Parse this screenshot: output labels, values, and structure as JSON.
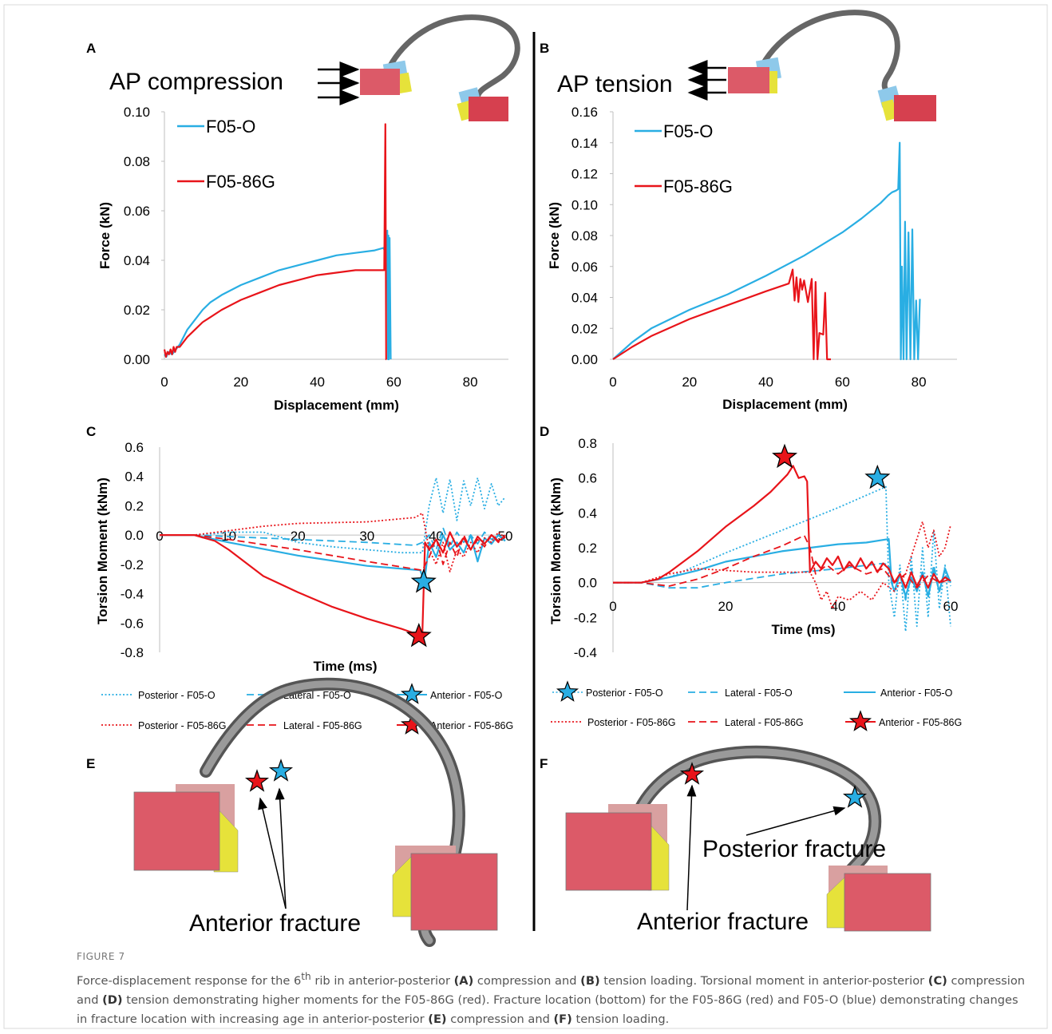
{
  "colors": {
    "blue": "#29aee3",
    "red": "#e8141a",
    "block": "#dc5a68",
    "block_back": "#d9a0a0",
    "yellow": "#e6e23a",
    "rib": "#7a7a7a"
  },
  "panels": {
    "a": "A",
    "b": "B",
    "c": "C",
    "d": "D",
    "e": "E",
    "f": "F"
  },
  "schematics": {
    "a_title": "AP compression",
    "b_title": "AP tension",
    "anterior": "Anterior fracture",
    "posterior": "Posterior fracture"
  },
  "chart_data": [
    {
      "panel": "A",
      "type": "line",
      "xlabel": "Displacement (mm)",
      "ylabel": "Force (kN)",
      "xlim": [
        0,
        90
      ],
      "ylim": [
        0,
        0.1
      ],
      "xticks": [
        "0",
        "20",
        "40",
        "60",
        "80"
      ],
      "yticks": [
        "0.00",
        "0.02",
        "0.04",
        "0.06",
        "0.08",
        "0.10"
      ],
      "legend": [
        "F05-O",
        "F05-86G"
      ],
      "series": [
        {
          "name": "F05-O",
          "color": "blue",
          "style": "solid",
          "x": [
            0,
            0.5,
            1,
            2,
            3,
            4,
            5,
            6,
            8,
            10,
            12,
            15,
            20,
            25,
            30,
            35,
            40,
            45,
            50,
            55,
            57.3,
            57.6,
            57.8,
            58.0,
            58.3,
            58.5,
            58.6,
            58.7,
            58.9,
            59.2
          ],
          "y": [
            0.002,
            0.001,
            0.003,
            0.002,
            0.004,
            0.006,
            0.009,
            0.012,
            0.016,
            0.02,
            0.023,
            0.026,
            0.03,
            0.033,
            0.036,
            0.038,
            0.04,
            0.042,
            0.043,
            0.044,
            0.045,
            0.044,
            0.05,
            0.046,
            0.052,
            0.0,
            0.05,
            0.0,
            0.049,
            0.0
          ]
        },
        {
          "name": "F05-86G",
          "color": "red",
          "style": "solid",
          "x": [
            0,
            0.4,
            0.8,
            1.2,
            1.6,
            2,
            2.4,
            2.8,
            3.2,
            4,
            5,
            6,
            8,
            10,
            12,
            15,
            20,
            25,
            30,
            35,
            40,
            45,
            50,
            55,
            57.5,
            57.8,
            58.0,
            58.1
          ],
          "y": [
            0.004,
            0.001,
            0.003,
            0.002,
            0.004,
            0.002,
            0.005,
            0.003,
            0.005,
            0.005,
            0.007,
            0.009,
            0.012,
            0.015,
            0.017,
            0.02,
            0.024,
            0.027,
            0.03,
            0.032,
            0.034,
            0.035,
            0.036,
            0.036,
            0.036,
            0.095,
            0.0,
            0.0
          ]
        }
      ]
    },
    {
      "panel": "B",
      "type": "line",
      "xlabel": "Displacement (mm)",
      "ylabel": "Force (kN)",
      "xlim": [
        0,
        90
      ],
      "ylim": [
        0,
        0.16
      ],
      "xticks": [
        "0",
        "20",
        "40",
        "60",
        "80"
      ],
      "yticks": [
        "0.00",
        "0.02",
        "0.04",
        "0.06",
        "0.08",
        "0.10",
        "0.12",
        "0.14",
        "0.16"
      ],
      "legend": [
        "F05-O",
        "F05-86G"
      ],
      "series": [
        {
          "name": "F05-O",
          "color": "blue",
          "style": "solid",
          "x": [
            0,
            5,
            10,
            20,
            30,
            40,
            50,
            60,
            65,
            70,
            72,
            73,
            74,
            74.6,
            75,
            75.3,
            75.6,
            76,
            76.4,
            76.8,
            77.3,
            77.8,
            78.3,
            78.8,
            79.3,
            79.8,
            80.3
          ],
          "y": [
            0,
            0.011,
            0.02,
            0.032,
            0.042,
            0.054,
            0.067,
            0.082,
            0.091,
            0.101,
            0.106,
            0.108,
            0.109,
            0.11,
            0.14,
            0.0,
            0.06,
            0.0,
            0.089,
            0.0,
            0.082,
            0.0,
            0.084,
            0.0,
            0.038,
            0.0,
            0.039
          ]
        },
        {
          "name": "F05-86G",
          "color": "red",
          "style": "solid",
          "x": [
            0,
            5,
            10,
            20,
            30,
            40,
            46,
            47,
            47.5,
            48,
            48.5,
            49,
            49.5,
            50,
            51,
            52,
            52.5,
            53,
            53.5,
            54,
            55,
            55.5,
            56,
            56.5,
            57
          ],
          "y": [
            0,
            0.008,
            0.015,
            0.026,
            0.035,
            0.044,
            0.049,
            0.058,
            0.038,
            0.053,
            0.037,
            0.052,
            0.045,
            0.051,
            0.037,
            0.052,
            0.0,
            0.05,
            0.0,
            0.017,
            0.016,
            0.043,
            0.0,
            0.0,
            0.0
          ]
        }
      ]
    },
    {
      "panel": "C",
      "type": "line",
      "xlabel": "Time (ms)",
      "ylabel": "Torsion Moment (kNm)",
      "xlim": [
        0,
        50
      ],
      "ylim": [
        -0.8,
        0.6
      ],
      "xticks": [
        "0",
        "10",
        "20",
        "30",
        "40",
        "50"
      ],
      "yticks": [
        "0.6",
        "0.4",
        "0.2",
        "0.0",
        "-0.2",
        "-0.4",
        "-0.6",
        "-0.8"
      ],
      "legend": [
        "Posterior - F05-O",
        "Lateral - F05-O",
        "Anterior - F05-O",
        "Posterior - F05-86G",
        "Lateral - F05-86G",
        "Anterior - F05-86G"
      ],
      "series": [
        {
          "name": "Posterior - F05-O",
          "color": "blue",
          "style": "dotted",
          "x": [
            0,
            5,
            8,
            10,
            15,
            20,
            25,
            30,
            35,
            38,
            39,
            40,
            41,
            42,
            43,
            44,
            45,
            46,
            47,
            48,
            49,
            50
          ],
          "y": [
            0,
            0,
            0.01,
            0.02,
            0.02,
            -0.05,
            -0.08,
            -0.1,
            -0.12,
            -0.12,
            0.2,
            0.39,
            0.15,
            0.38,
            0.1,
            0.37,
            0.2,
            0.39,
            0.18,
            0.35,
            0.2,
            0.26
          ]
        },
        {
          "name": "Lateral - F05-O",
          "color": "blue",
          "style": "dashed",
          "x": [
            0,
            5,
            10,
            20,
            30,
            37,
            38,
            39,
            40,
            41,
            42,
            43,
            44,
            45,
            46,
            47,
            48,
            49,
            50
          ],
          "y": [
            0,
            0,
            -0.01,
            -0.03,
            -0.05,
            -0.07,
            -0.05,
            0.0,
            -0.1,
            0.05,
            -0.08,
            0.02,
            -0.05,
            0.0,
            -0.06,
            0.02,
            -0.03,
            0.0,
            -0.03
          ]
        },
        {
          "name": "Anterior - F05-O",
          "color": "blue",
          "style": "solid",
          "x": [
            0,
            5,
            10,
            20,
            30,
            37.7,
            38.3,
            39,
            40,
            41,
            42,
            43,
            44,
            45,
            46,
            47,
            48,
            49,
            50
          ],
          "y": [
            0,
            0,
            -0.05,
            -0.14,
            -0.21,
            -0.24,
            -0.32,
            -0.05,
            -0.15,
            0.0,
            -0.1,
            -0.05,
            -0.12,
            0.0,
            -0.18,
            -0.02,
            -0.06,
            0.0,
            -0.04
          ]
        },
        {
          "name": "Posterior - F05-86G",
          "color": "red",
          "style": "dotted",
          "x": [
            0,
            5,
            10,
            15,
            20,
            30,
            37,
            38,
            39,
            40,
            41,
            42,
            43,
            44,
            45,
            46,
            47,
            48,
            49,
            50
          ],
          "y": [
            0,
            0,
            0.03,
            0.06,
            0.08,
            0.09,
            0.12,
            0.15,
            -0.1,
            -0.2,
            -0.05,
            -0.25,
            -0.1,
            -0.15,
            -0.05,
            -0.12,
            -0.02,
            -0.05,
            0.02,
            -0.02
          ]
        },
        {
          "name": "Lateral - F05-86G",
          "color": "red",
          "style": "dashed",
          "x": [
            0,
            5,
            10,
            20,
            30,
            38,
            39,
            40,
            41,
            42,
            43,
            44,
            45,
            46,
            47,
            48,
            49,
            50
          ],
          "y": [
            0,
            0,
            -0.03,
            -0.1,
            -0.18,
            -0.24,
            -0.15,
            -0.02,
            -0.2,
            -0.05,
            -0.15,
            0.0,
            -0.1,
            -0.03,
            -0.08,
            0.0,
            -0.05,
            0.0
          ]
        },
        {
          "name": "Anterior - F05-86G",
          "color": "red",
          "style": "solid",
          "x": [
            0,
            5,
            8,
            10,
            15,
            20,
            25,
            30,
            35,
            37.5,
            38,
            38.4,
            39,
            40,
            41,
            42,
            43,
            44,
            45,
            46,
            47,
            48,
            49,
            50
          ],
          "y": [
            0,
            0,
            -0.04,
            -0.1,
            -0.28,
            -0.39,
            -0.49,
            -0.57,
            -0.64,
            -0.68,
            -0.68,
            -0.05,
            -0.1,
            -0.03,
            -0.12,
            0.02,
            -0.08,
            -0.02,
            -0.1,
            -0.01,
            -0.06,
            0.0,
            -0.04,
            -0.01
          ]
        }
      ],
      "markers": [
        {
          "series": "Anterior - F05-O",
          "x": 38.2,
          "y": -0.32,
          "color": "blue"
        },
        {
          "series": "Anterior - F05-86G",
          "x": 37.5,
          "y": -0.69,
          "color": "red"
        }
      ]
    },
    {
      "panel": "D",
      "type": "line",
      "xlabel": "Time (ms)",
      "ylabel": "Torsion Moment (kNm)",
      "xlim": [
        0,
        60
      ],
      "ylim": [
        -0.4,
        0.8
      ],
      "xticks": [
        "0",
        "20",
        "40",
        "60"
      ],
      "yticks": [
        "0.8",
        "0.6",
        "0.4",
        "0.2",
        "0.0",
        "-0.2",
        "-0.4"
      ],
      "legend": [
        "Posterior - F05-O",
        "Lateral - F05-O",
        "Anterior - F05-O",
        "Posterior - F05-86G",
        "Lateral - F05-86G",
        "Anterior - F05-86G"
      ],
      "series": [
        {
          "name": "Posterior - F05-O",
          "color": "blue",
          "style": "dotted",
          "x": [
            0,
            5,
            10,
            15,
            20,
            30,
            40,
            48.5,
            49,
            50,
            51,
            52,
            53,
            54,
            55,
            56,
            57,
            58,
            59,
            60
          ],
          "y": [
            0,
            0,
            0.03,
            0.1,
            0.17,
            0.3,
            0.43,
            0.55,
            0.0,
            -0.2,
            0.1,
            -0.28,
            0.15,
            -0.25,
            0.2,
            -0.2,
            0.3,
            -0.15,
            0.1,
            -0.25
          ]
        },
        {
          "name": "Lateral - F05-O",
          "color": "blue",
          "style": "dashed",
          "x": [
            0,
            5,
            10,
            15,
            20,
            30,
            40,
            48,
            49,
            50,
            51,
            52,
            53,
            54,
            55,
            56,
            57,
            58,
            59,
            60
          ],
          "y": [
            0,
            0,
            -0.03,
            -0.03,
            0.0,
            0.05,
            0.08,
            0.11,
            0.1,
            -0.05,
            0.05,
            -0.1,
            0.08,
            -0.05,
            0.05,
            -0.08,
            0.1,
            -0.05,
            0.05,
            -0.02
          ]
        },
        {
          "name": "Anterior - F05-O",
          "color": "blue",
          "style": "solid",
          "x": [
            0,
            5,
            10,
            15,
            20,
            25,
            30,
            35,
            40,
            45,
            49,
            49.5,
            50,
            51,
            52,
            53,
            54,
            55,
            56,
            57,
            58,
            59,
            60
          ],
          "y": [
            0,
            0,
            0.03,
            0.07,
            0.12,
            0.15,
            0.18,
            0.2,
            0.22,
            0.23,
            0.25,
            0.0,
            -0.05,
            0.05,
            -0.08,
            0.03,
            -0.05,
            0.06,
            -0.08,
            0.07,
            -0.05,
            0.08,
            0.0
          ]
        },
        {
          "name": "Posterior - F05-86G",
          "color": "red",
          "style": "dotted",
          "x": [
            0,
            5,
            10,
            15,
            20,
            25,
            30,
            35,
            36,
            37,
            38,
            39,
            40,
            42,
            44,
            46,
            48,
            50,
            52,
            54,
            55,
            56,
            57,
            58,
            59,
            60
          ],
          "y": [
            0,
            0,
            0.05,
            0.08,
            0.07,
            0.06,
            0.06,
            0.06,
            0.0,
            -0.1,
            -0.05,
            -0.15,
            -0.08,
            -0.1,
            -0.05,
            -0.1,
            0.0,
            -0.05,
            0.05,
            0.25,
            0.35,
            0.2,
            0.3,
            0.15,
            0.2,
            0.33
          ]
        },
        {
          "name": "Lateral - F05-86G",
          "color": "red",
          "style": "dashed",
          "x": [
            0,
            5,
            10,
            15,
            20,
            25,
            30,
            34,
            35,
            36,
            38,
            40,
            42,
            45,
            48,
            50,
            52,
            54,
            56,
            58,
            60
          ],
          "y": [
            0,
            0,
            -0.02,
            0.02,
            0.08,
            0.15,
            0.21,
            0.27,
            0.2,
            0.05,
            0.1,
            0.05,
            0.1,
            0.05,
            0.08,
            0.0,
            0.05,
            -0.03,
            0.04,
            0.0,
            0.02
          ]
        },
        {
          "name": "Anterior - F05-86G",
          "color": "red",
          "style": "solid",
          "x": [
            0,
            5,
            8,
            10,
            15,
            20,
            25,
            28,
            31,
            32,
            33,
            34,
            34.5,
            35,
            36,
            37,
            38,
            39,
            40,
            41,
            42,
            43,
            44,
            45,
            46,
            47,
            48,
            49,
            50,
            51,
            52,
            53,
            54,
            55,
            56,
            57,
            58,
            59,
            60
          ],
          "y": [
            0,
            0,
            0.02,
            0.06,
            0.18,
            0.32,
            0.44,
            0.52,
            0.62,
            0.67,
            0.6,
            0.61,
            0.58,
            0.06,
            0.12,
            0.08,
            0.14,
            0.1,
            0.15,
            0.07,
            0.12,
            0.08,
            0.14,
            0.08,
            0.12,
            0.06,
            0.11,
            0.08,
            0.0,
            0.05,
            -0.03,
            0.06,
            -0.02,
            0.04,
            -0.03,
            0.05,
            0.0,
            0.03,
            0.01
          ]
        }
      ],
      "markers": [
        {
          "series": "Posterior - F05-O",
          "x": 47.0,
          "y": 0.6,
          "color": "blue"
        },
        {
          "series": "Anterior - F05-86G",
          "x": 30.5,
          "y": 0.72,
          "color": "red"
        }
      ]
    }
  ],
  "caption": {
    "fig_label": "FIGURE 7",
    "t1": "Force-displacement response for the 6",
    "sup": "th",
    "t2": " rib in anterior-posterior ",
    "a": "(A)",
    "t3": " compression and ",
    "b": "(B)",
    "t4": " tension loading. Torsional moment in anterior-posterior ",
    "c": "(C)",
    "t5": " compression and ",
    "d": "(D)",
    "t6": " tension demonstrating higher moments for the F05-86G (red). Fracture location (bottom) for the F05-86G (red) and F05-O (blue) demonstrating changes in fracture location with increasing age in anterior-posterior ",
    "e": "(E)",
    "t7": " compression and ",
    "f": "(F)",
    "t8": " tension loading."
  }
}
